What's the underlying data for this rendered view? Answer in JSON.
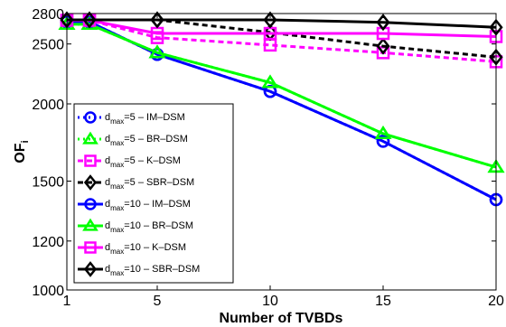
{
  "chart_data": {
    "type": "line",
    "title": "",
    "xlabel": "Number of TVBDs",
    "ylabel": "OF",
    "ylabel_sub": "i",
    "xlim": [
      1,
      20
    ],
    "ylim": [
      1000,
      2800
    ],
    "xticks": [
      1,
      5,
      10,
      15,
      20
    ],
    "yticks": [
      1000,
      1200,
      1500,
      2000,
      2500,
      2800
    ],
    "grid": false,
    "legend_position": "lower-left",
    "x": [
      1,
      2,
      5,
      10,
      15,
      20
    ],
    "series": [
      {
        "name": "d_max=5 – IM–DSM",
        "sym": "d",
        "sub": "max",
        "rest": "=5 – IM–DSM",
        "color": "#0000ff",
        "dash": "dotted",
        "marker": "circle",
        "values": [
          2715,
          2715,
          2405,
          2095,
          1740,
          1400
        ]
      },
      {
        "name": "d_max=5 – BR–DSM",
        "sym": "d",
        "sub": "max",
        "rest": "=5 – BR–DSM",
        "color": "#00ff00",
        "dash": "dotted",
        "marker": "triangle",
        "values": [
          2690,
          2690,
          2420,
          2165,
          1790,
          1580
        ]
      },
      {
        "name": "d_max=5 – K–DSM",
        "sym": "d",
        "sub": "max",
        "rest": "=5 – K–DSM",
        "color": "#ff00ff",
        "dash": "dashed",
        "marker": "square",
        "values": [
          2730,
          2730,
          2560,
          2490,
          2420,
          2340
        ]
      },
      {
        "name": "d_max=5 – SBR–DSM",
        "sym": "d",
        "sub": "max",
        "rest": "=5 – SBR–DSM",
        "color": "#000000",
        "dash": "dashed",
        "marker": "diamond",
        "values": [
          2735,
          2735,
          2735,
          2610,
          2480,
          2380
        ]
      },
      {
        "name": "d_max=10 – IM–DSM",
        "sym": "d",
        "sub": "max",
        "rest": "=10 – IM–DSM",
        "color": "#0000ff",
        "dash": "solid",
        "marker": "circle",
        "values": [
          2715,
          2715,
          2405,
          2095,
          1740,
          1400
        ]
      },
      {
        "name": "d_max=10 – BR–DSM",
        "sym": "d",
        "sub": "max",
        "rest": "=10 – BR–DSM",
        "color": "#00ff00",
        "dash": "solid",
        "marker": "triangle",
        "values": [
          2690,
          2690,
          2420,
          2165,
          1790,
          1580
        ]
      },
      {
        "name": "d_max=10 – K–DSM",
        "sym": "d",
        "sub": "max",
        "rest": "=10 – K–DSM",
        "color": "#ff00ff",
        "dash": "solid",
        "marker": "square",
        "values": [
          2730,
          2730,
          2600,
          2600,
          2600,
          2570
        ]
      },
      {
        "name": "d_max=10 – SBR–DSM",
        "sym": "d",
        "sub": "max",
        "rest": "=10 – SBR–DSM",
        "color": "#000000",
        "dash": "solid",
        "marker": "diamond",
        "values": [
          2735,
          2735,
          2735,
          2735,
          2710,
          2660
        ]
      }
    ]
  }
}
